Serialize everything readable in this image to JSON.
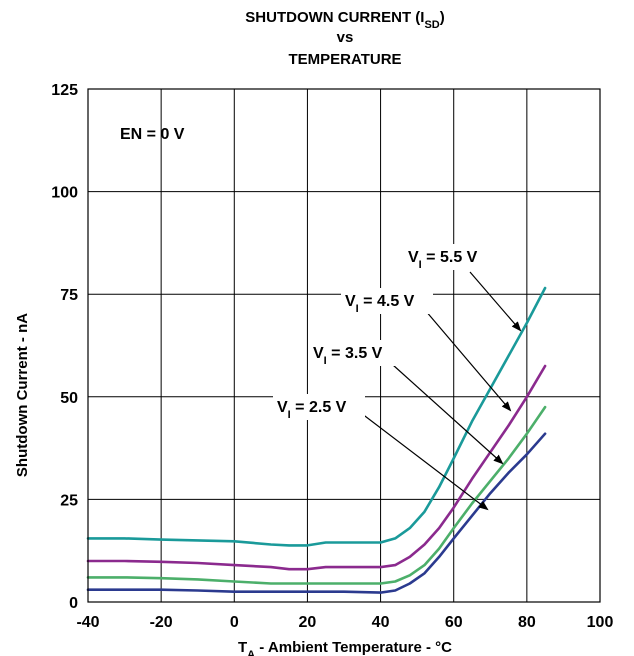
{
  "chart_data": {
    "type": "line",
    "title": {
      "line1": "SHUTDOWN CURRENT (I",
      "line1_sub": "SD",
      "line1_end": ")",
      "line2": "vs",
      "line3": "TEMPERATURE"
    },
    "xlabel": {
      "main": "T",
      "sub": "A",
      "rest": " - Ambient Temperature - °C"
    },
    "ylabel": "Shutdown Current - nA",
    "xlim": [
      -40,
      100
    ],
    "ylim": [
      0,
      125
    ],
    "x_ticks": [
      "-40",
      "-20",
      "0",
      "20",
      "40",
      "60",
      "80",
      "100"
    ],
    "y_ticks": [
      "0",
      "25",
      "50",
      "75",
      "100",
      "125"
    ],
    "grid": true,
    "condition_label": "EN = 0 V",
    "series": [
      {
        "name": "VI = 5.5 V",
        "label_main": "V",
        "label_sub": "I",
        "label_rest": " = 5.5 V",
        "color": "#1a9a9a",
        "points": [
          [
            -40,
            15.5
          ],
          [
            -30,
            15.5
          ],
          [
            -20,
            15.2
          ],
          [
            -10,
            15
          ],
          [
            0,
            14.8
          ],
          [
            10,
            14
          ],
          [
            15,
            13.8
          ],
          [
            20,
            13.8
          ],
          [
            25,
            14.5
          ],
          [
            30,
            14.5
          ],
          [
            40,
            14.5
          ],
          [
            44,
            15.5
          ],
          [
            48,
            18
          ],
          [
            52,
            22
          ],
          [
            56,
            28
          ],
          [
            60,
            35
          ],
          [
            65,
            44
          ],
          [
            70,
            52
          ],
          [
            75,
            60
          ],
          [
            80,
            68
          ],
          [
            85,
            76.5
          ]
        ]
      },
      {
        "name": "VI = 4.5 V",
        "label_main": "V",
        "label_sub": "I",
        "label_rest": " = 4.5 V",
        "color": "#8b2a8e",
        "points": [
          [
            -40,
            10
          ],
          [
            -30,
            10
          ],
          [
            -20,
            9.8
          ],
          [
            -10,
            9.5
          ],
          [
            0,
            9
          ],
          [
            10,
            8.5
          ],
          [
            15,
            8
          ],
          [
            20,
            8
          ],
          [
            25,
            8.5
          ],
          [
            30,
            8.5
          ],
          [
            40,
            8.5
          ],
          [
            44,
            9
          ],
          [
            48,
            11
          ],
          [
            52,
            14
          ],
          [
            56,
            18
          ],
          [
            60,
            23
          ],
          [
            65,
            30
          ],
          [
            70,
            36.5
          ],
          [
            75,
            43
          ],
          [
            80,
            50
          ],
          [
            85,
            57.5
          ]
        ]
      },
      {
        "name": "VI = 3.5 V",
        "label_main": "V",
        "label_sub": "I",
        "label_rest": " = 3.5 V",
        "color": "#4caf6a",
        "points": [
          [
            -40,
            6
          ],
          [
            -30,
            6
          ],
          [
            -20,
            5.8
          ],
          [
            -10,
            5.5
          ],
          [
            0,
            5
          ],
          [
            10,
            4.5
          ],
          [
            15,
            4.5
          ],
          [
            20,
            4.5
          ],
          [
            25,
            4.5
          ],
          [
            30,
            4.5
          ],
          [
            40,
            4.5
          ],
          [
            44,
            5
          ],
          [
            48,
            6.5
          ],
          [
            52,
            9
          ],
          [
            56,
            13
          ],
          [
            60,
            18
          ],
          [
            65,
            24
          ],
          [
            70,
            29.5
          ],
          [
            75,
            35
          ],
          [
            80,
            41
          ],
          [
            85,
            47.5
          ]
        ]
      },
      {
        "name": "VI = 2.5 V",
        "label_main": "V",
        "label_sub": "I",
        "label_rest": " = 2.5 V",
        "color": "#2b3a8f",
        "points": [
          [
            -40,
            3
          ],
          [
            -30,
            3
          ],
          [
            -20,
            3
          ],
          [
            -10,
            2.8
          ],
          [
            0,
            2.5
          ],
          [
            10,
            2.5
          ],
          [
            15,
            2.5
          ],
          [
            20,
            2.5
          ],
          [
            25,
            2.5
          ],
          [
            30,
            2.5
          ],
          [
            40,
            2.3
          ],
          [
            44,
            2.8
          ],
          [
            48,
            4.5
          ],
          [
            52,
            7
          ],
          [
            56,
            11
          ],
          [
            60,
            15.5
          ],
          [
            65,
            21
          ],
          [
            70,
            26.5
          ],
          [
            75,
            31.5
          ],
          [
            80,
            36
          ],
          [
            85,
            41
          ]
        ]
      }
    ]
  }
}
